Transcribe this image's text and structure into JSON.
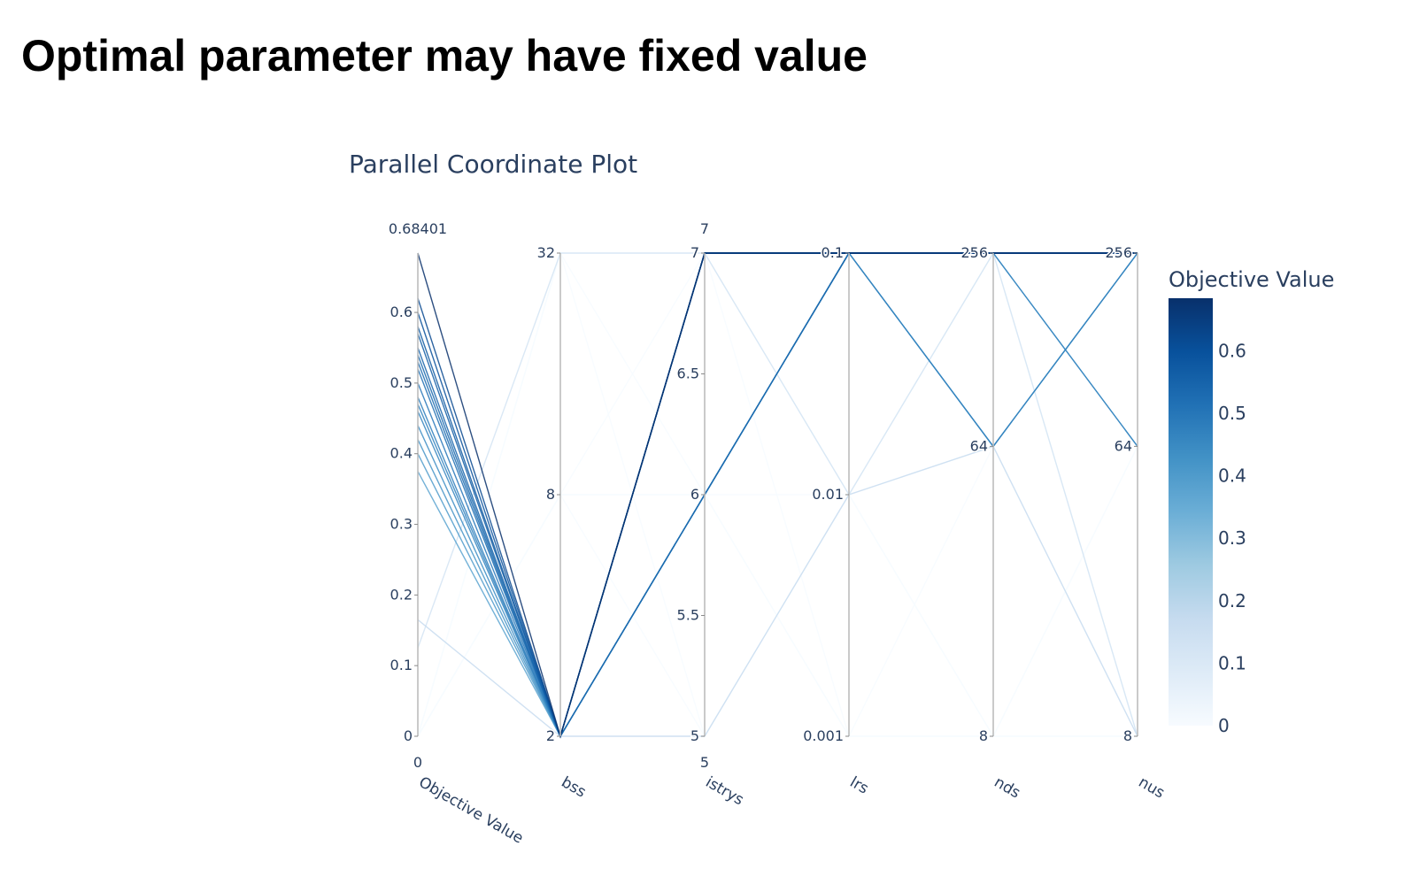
{
  "slide": {
    "title": "Optimal parameter may have fixed value"
  },
  "chart_data": {
    "type": "parallel_coordinates",
    "title": "Parallel Coordinate Plot",
    "colorscale": [
      "#f7fbff",
      "#deebf7",
      "#c6dbef",
      "#9ecae1",
      "#6baed6",
      "#4292c6",
      "#2171b5",
      "#08519c",
      "#08306b"
    ],
    "colorbar": {
      "title": "Objective Value",
      "range": [
        0,
        0.68401
      ],
      "ticks": [
        "0",
        "0.1",
        "0.2",
        "0.3",
        "0.4",
        "0.5",
        "0.6"
      ],
      "tick_values": [
        0,
        0.1,
        0.2,
        0.3,
        0.4,
        0.5,
        0.6
      ]
    },
    "dimensions": [
      {
        "name": "Objective Value",
        "scale": "linear",
        "range": [
          0,
          0.68401
        ],
        "range_labels": [
          "0",
          "0.68401"
        ],
        "ticks": [
          "0",
          "0.1",
          "0.2",
          "0.3",
          "0.4",
          "0.5",
          "0.6"
        ],
        "tick_values": [
          0,
          0.1,
          0.2,
          0.3,
          0.4,
          0.5,
          0.6
        ]
      },
      {
        "name": "bss",
        "scale": "log",
        "range": [
          2,
          32
        ],
        "range_labels": [],
        "ticks": [
          "2",
          "8",
          "32"
        ],
        "tick_values": [
          2,
          8,
          32
        ]
      },
      {
        "name": "istrys",
        "scale": "linear",
        "range": [
          5,
          7
        ],
        "range_labels": [
          "5",
          "7"
        ],
        "ticks": [
          "5",
          "5.5",
          "6",
          "6.5",
          "7"
        ],
        "tick_values": [
          5,
          5.5,
          6,
          6.5,
          7
        ]
      },
      {
        "name": "lrs",
        "scale": "log",
        "range": [
          0.001,
          0.1
        ],
        "range_labels": [],
        "ticks": [
          "0.001",
          "0.01",
          "0.1"
        ],
        "tick_values": [
          0.001,
          0.01,
          0.1
        ]
      },
      {
        "name": "nds",
        "scale": "log",
        "range": [
          8,
          256
        ],
        "range_labels": [],
        "ticks": [
          "8",
          "64",
          "256"
        ],
        "tick_values": [
          8,
          64,
          256
        ]
      },
      {
        "name": "nus",
        "scale": "log",
        "range": [
          8,
          256
        ],
        "range_labels": [],
        "ticks": [
          "8",
          "64",
          "256"
        ],
        "tick_values": [
          8,
          64,
          256
        ]
      }
    ],
    "trials": [
      [
        0.68401,
        2,
        7,
        0.1,
        256,
        256
      ],
      [
        0.62,
        2,
        7,
        0.1,
        256,
        256
      ],
      [
        0.6,
        2,
        7,
        0.1,
        256,
        256
      ],
      [
        0.58,
        2,
        7,
        0.1,
        256,
        256
      ],
      [
        0.57,
        2,
        7,
        0.1,
        256,
        256
      ],
      [
        0.55,
        2,
        7,
        0.1,
        256,
        256
      ],
      [
        0.54,
        2,
        6,
        0.1,
        256,
        256
      ],
      [
        0.53,
        2,
        7,
        0.1,
        256,
        256
      ],
      [
        0.52,
        2,
        7,
        0.1,
        256,
        256
      ],
      [
        0.5,
        2,
        7,
        0.1,
        256,
        256
      ],
      [
        0.48,
        2,
        6,
        0.1,
        256,
        256
      ],
      [
        0.47,
        2,
        6,
        0.1,
        64,
        256
      ],
      [
        0.46,
        2,
        6,
        0.1,
        256,
        64
      ],
      [
        0.44,
        2,
        6,
        0.1,
        64,
        256
      ],
      [
        0.42,
        2,
        7,
        0.1,
        256,
        256
      ],
      [
        0.4,
        2,
        6,
        0.1,
        256,
        64
      ],
      [
        0.375,
        2,
        6,
        0.1,
        64,
        256
      ],
      [
        0.165,
        2,
        5,
        0.01,
        64,
        8
      ],
      [
        0.125,
        32,
        7,
        0.01,
        256,
        8
      ],
      [
        0,
        32,
        5,
        0.01,
        8,
        8
      ],
      [
        0,
        8,
        7,
        0.001,
        8,
        64
      ],
      [
        0,
        8,
        6,
        0.01,
        64,
        8
      ],
      [
        0,
        32,
        6,
        0.001,
        64,
        256
      ],
      [
        0,
        8,
        5,
        0.01,
        256,
        8
      ],
      [
        0,
        32,
        7,
        0.01,
        8,
        64
      ],
      [
        0,
        8,
        6,
        0.001,
        8,
        8
      ]
    ]
  }
}
